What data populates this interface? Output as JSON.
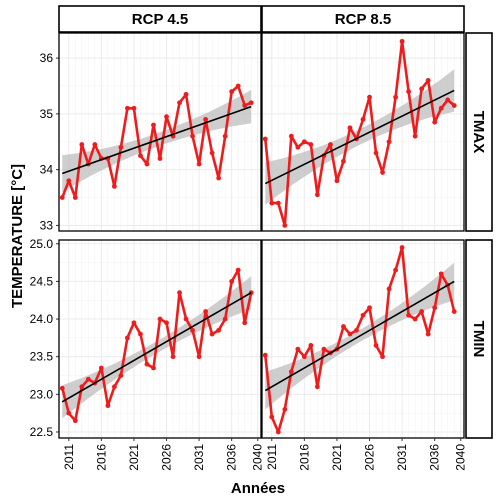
{
  "chart_data": {
    "type": "line",
    "xlabel": "Années",
    "ylabel": "TEMPERATURE [°C]",
    "col_strips": [
      "RCP 4.5",
      "RCP 8.5"
    ],
    "row_strips": [
      "TMAX",
      "TMIN"
    ],
    "x_ticks": [
      2011,
      2016,
      2021,
      2026,
      2031,
      2036,
      2040
    ],
    "x_range": [
      2009.5,
      2040.5
    ],
    "grid": true,
    "colors": {
      "series": "#ee1c1c",
      "trend": "#000000",
      "ribbon": "#bdbdbd",
      "grid": "#ebebeb"
    },
    "rows": [
      {
        "name": "TMAX",
        "y_ticks": [
          33,
          34,
          35,
          36
        ],
        "y_range": [
          32.9,
          36.45
        ],
        "panels": [
          {
            "strip": "RCP 4.5",
            "x": [
              2010,
              2011,
              2012,
              2013,
              2014,
              2015,
              2016,
              2017,
              2018,
              2019,
              2020,
              2021,
              2022,
              2023,
              2024,
              2025,
              2026,
              2027,
              2028,
              2029,
              2030,
              2031,
              2032,
              2033,
              2034,
              2035,
              2036,
              2037,
              2038,
              2039
            ],
            "values": [
              33.5,
              33.8,
              33.5,
              34.45,
              34.1,
              34.45,
              34.2,
              34.2,
              33.7,
              34.4,
              35.1,
              35.1,
              34.25,
              34.1,
              34.8,
              34.2,
              34.95,
              34.6,
              35.2,
              35.35,
              34.6,
              34.1,
              34.9,
              34.3,
              33.85,
              34.6,
              35.4,
              35.5,
              35.15,
              35.2
            ],
            "trend": [
              33.93,
              35.13
            ],
            "band": [
              0.33,
              0.12,
              0.3
            ]
          },
          {
            "strip": "RCP 8.5",
            "x": [
              2010,
              2011,
              2012,
              2013,
              2014,
              2015,
              2016,
              2017,
              2018,
              2019,
              2020,
              2021,
              2022,
              2023,
              2024,
              2025,
              2026,
              2027,
              2028,
              2029,
              2030,
              2031,
              2032,
              2033,
              2034,
              2035,
              2036,
              2037,
              2038,
              2039
            ],
            "values": [
              34.55,
              33.4,
              33.4,
              33.0,
              34.6,
              34.4,
              34.5,
              34.45,
              33.55,
              34.25,
              34.45,
              33.8,
              34.15,
              34.75,
              34.55,
              34.9,
              35.3,
              34.3,
              33.95,
              34.5,
              35.3,
              36.3,
              35.4,
              34.6,
              35.45,
              35.6,
              34.85,
              35.1,
              35.25,
              35.15
            ],
            "trend": [
              33.75,
              35.42
            ],
            "band": [
              0.38,
              0.14,
              0.38
            ]
          }
        ]
      },
      {
        "name": "TMIN",
        "y_ticks": [
          22.5,
          23.0,
          23.5,
          24.0,
          24.5,
          25.0
        ],
        "y_range": [
          22.42,
          25.05
        ],
        "panels": [
          {
            "strip": "RCP 4.5",
            "x": [
              2010,
              2011,
              2012,
              2013,
              2014,
              2015,
              2016,
              2017,
              2018,
              2019,
              2020,
              2021,
              2022,
              2023,
              2024,
              2025,
              2026,
              2027,
              2028,
              2029,
              2030,
              2031,
              2032,
              2033,
              2034,
              2035,
              2036,
              2037,
              2038,
              2039
            ],
            "values": [
              23.08,
              22.75,
              22.65,
              23.1,
              23.2,
              23.15,
              23.35,
              22.85,
              23.1,
              23.25,
              23.75,
              23.95,
              23.8,
              23.4,
              23.35,
              24.0,
              23.95,
              23.5,
              24.35,
              24.0,
              23.85,
              23.5,
              24.1,
              23.8,
              23.85,
              24.0,
              24.5,
              24.65,
              23.95,
              24.35
            ],
            "trend": [
              22.9,
              24.35
            ],
            "band": [
              0.22,
              0.08,
              0.22
            ]
          },
          {
            "strip": "RCP 8.5",
            "x": [
              2010,
              2011,
              2012,
              2013,
              2014,
              2015,
              2016,
              2017,
              2018,
              2019,
              2020,
              2021,
              2022,
              2023,
              2024,
              2025,
              2026,
              2027,
              2028,
              2029,
              2030,
              2031,
              2032,
              2033,
              2034,
              2035,
              2036,
              2037,
              2038,
              2039
            ],
            "values": [
              23.52,
              22.7,
              22.5,
              22.8,
              23.3,
              23.6,
              23.5,
              23.65,
              23.1,
              23.6,
              23.55,
              23.6,
              23.9,
              23.8,
              23.85,
              24.05,
              24.15,
              23.65,
              23.5,
              24.4,
              24.65,
              24.95,
              24.05,
              24.0,
              24.1,
              23.8,
              24.15,
              24.6,
              24.45,
              24.1
            ],
            "trend": [
              23.05,
              24.5
            ],
            "band": [
              0.25,
              0.08,
              0.25
            ]
          }
        ]
      }
    ]
  }
}
